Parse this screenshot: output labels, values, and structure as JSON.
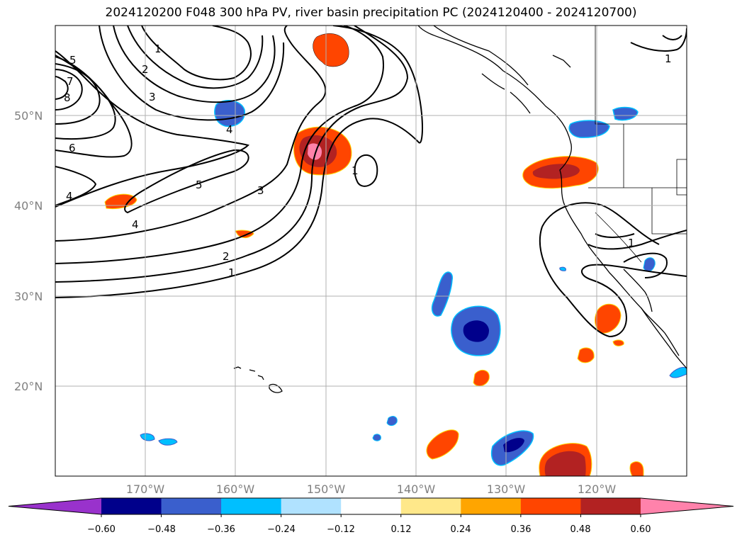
{
  "title": "2024120200 F048 300 hPa PV, river basin precipitation PC (2024120400 - 2024120700)",
  "lat_labels": [
    "50°N",
    "40°N",
    "30°N",
    "20°N"
  ],
  "lon_labels": [
    "170°W",
    "160°W",
    "150°W",
    "140°W",
    "130°W",
    "120°W"
  ],
  "colorbar": {
    "ticks": [
      "−0.60",
      "−0.48",
      "−0.36",
      "−0.24",
      "−0.12",
      "0.12",
      "0.24",
      "0.36",
      "0.48",
      "0.60"
    ],
    "colors": [
      "#9932CC",
      "#00008B",
      "#3A5FCD",
      "#00BFFF",
      "#B0E2FF",
      "#FFFFFF",
      "#FFE88A",
      "#FFA500",
      "#FF4500",
      "#B22222",
      "#FF82AB"
    ]
  },
  "pv_contour_labels": [
    "1",
    "2",
    "3",
    "4",
    "5",
    "6",
    "7",
    "8"
  ]
}
